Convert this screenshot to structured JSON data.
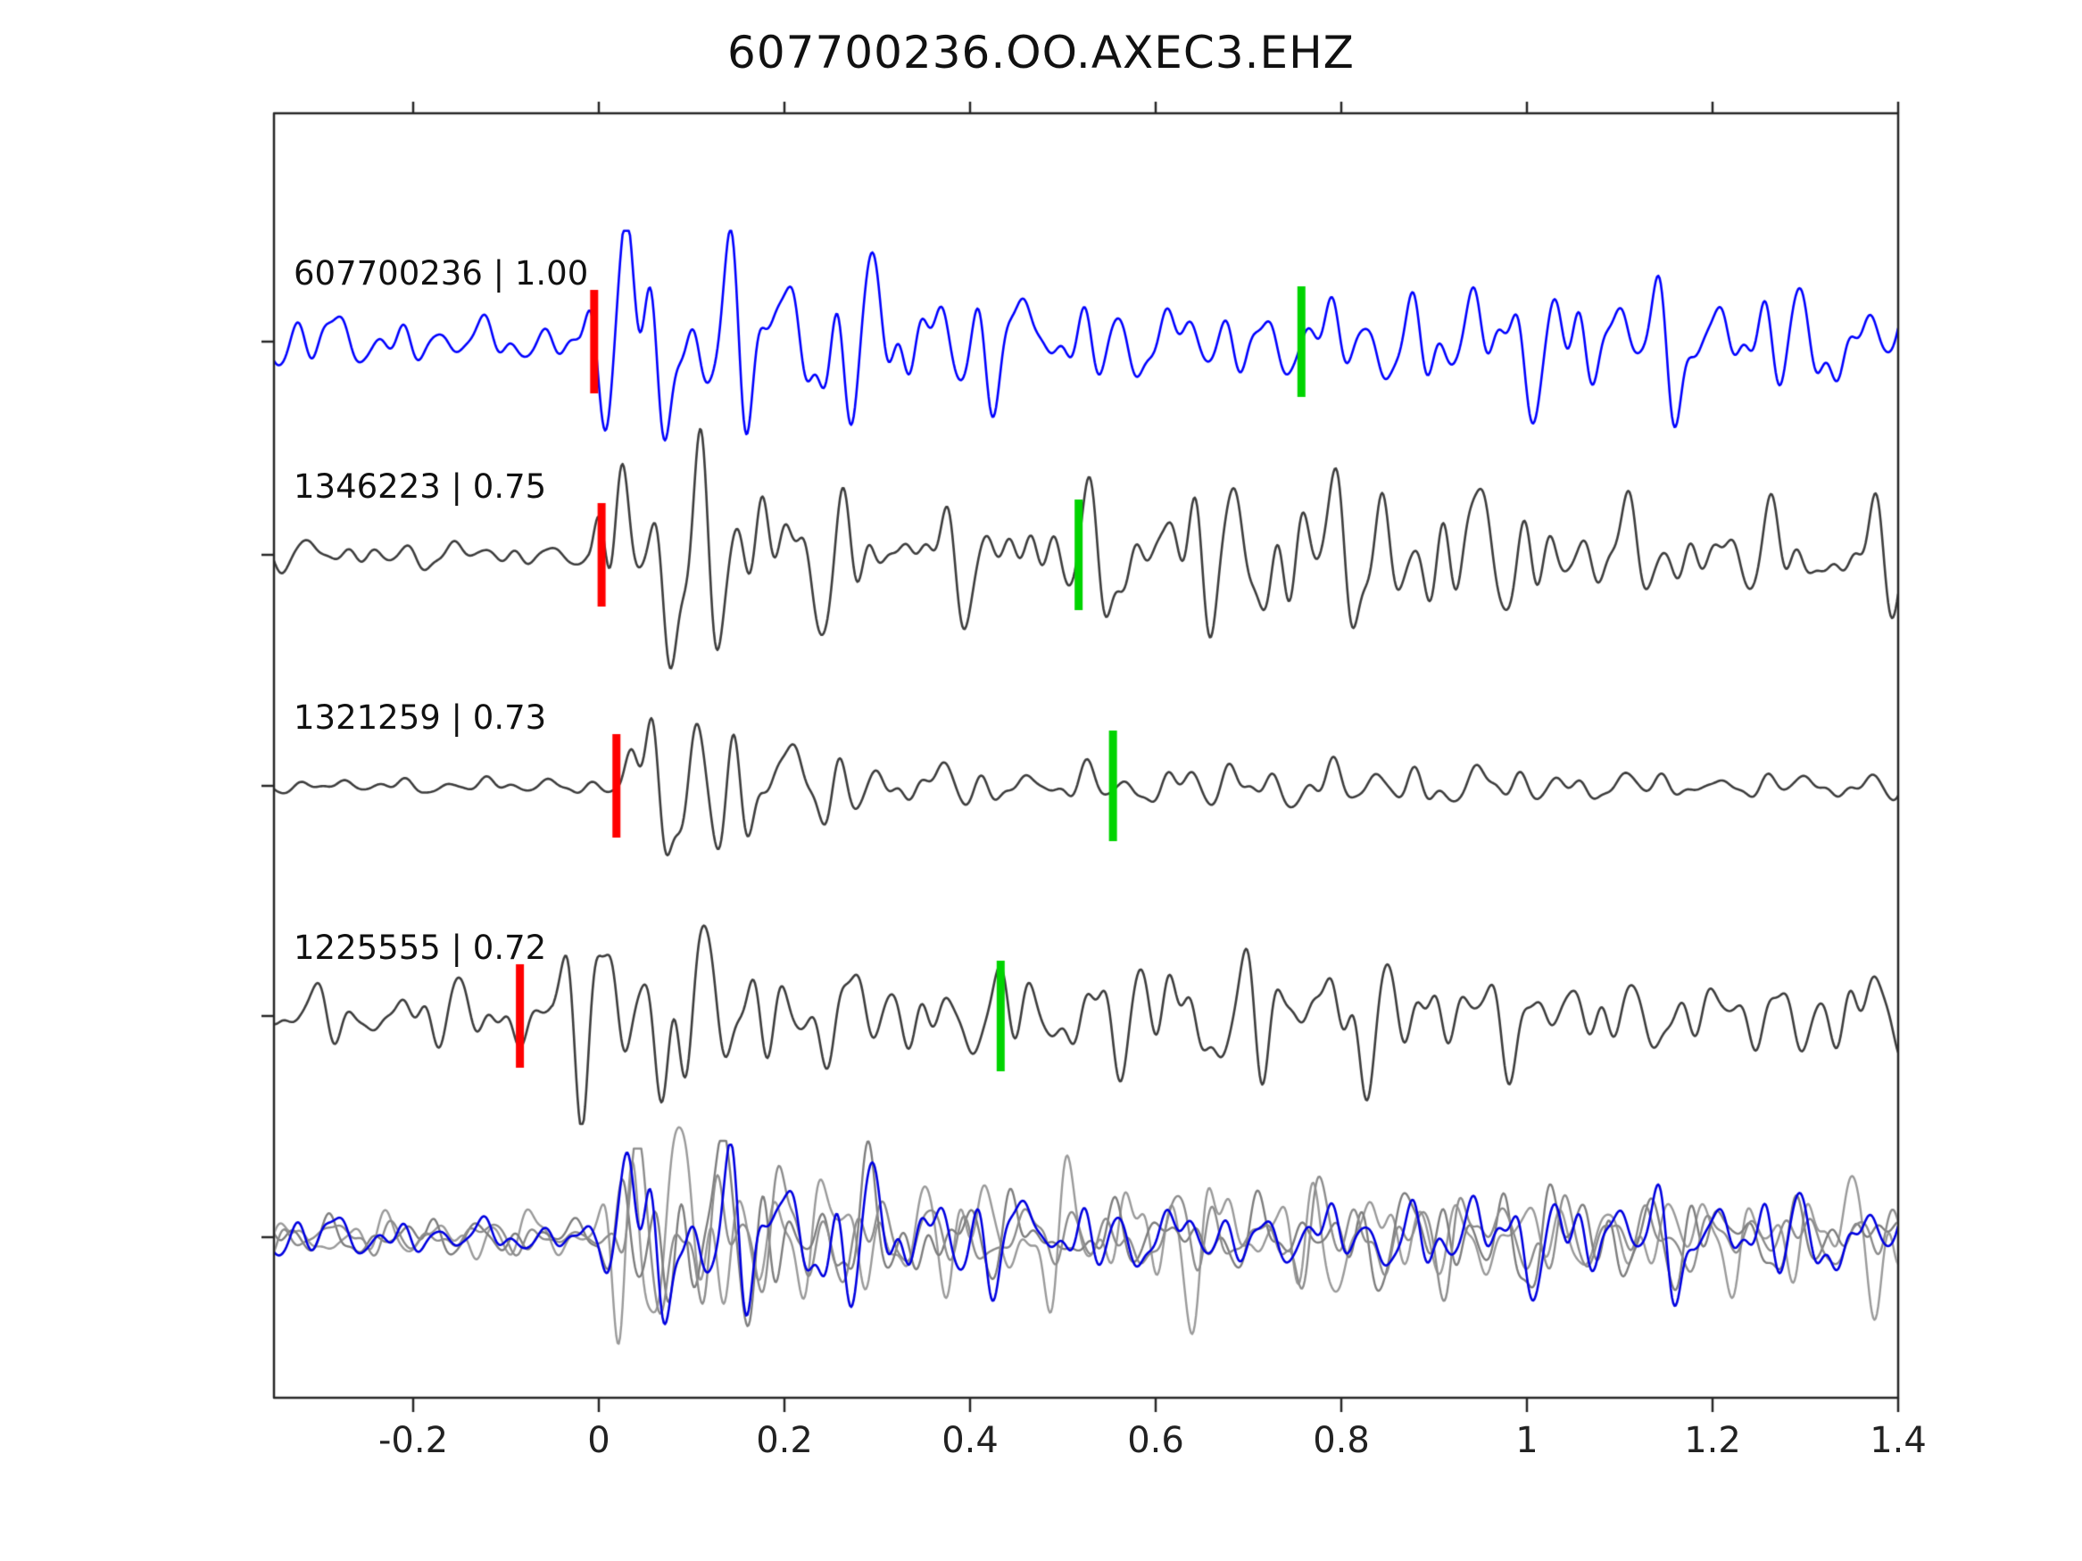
{
  "chart_data": {
    "type": "line",
    "title": "607700236.OO.AXEC3.EHZ",
    "xlabel": "",
    "ylabel": "",
    "xlim": [
      -0.35,
      1.4
    ],
    "grid": false,
    "legend_position": "none",
    "x_ticks": [
      -0.2,
      0,
      0.2,
      0.4,
      0.6,
      0.8,
      1,
      1.2,
      1.4
    ],
    "x_tick_labels": [
      "-0.2",
      "0",
      "0.2",
      "0.4",
      "0.6",
      "0.8",
      "1",
      "1.2",
      "1.4"
    ],
    "description": "Template-matching cross-correlation detections: four seismogram traces with red pick marks and green pick marks, plus a bottom row where all aligned traces are superimposed (grays) with the reference trace in blue.",
    "traces": [
      {
        "label": "607700236 | 1.00",
        "event_id": "607700236",
        "correlation": 1.0,
        "color": "#0000ff",
        "red_pick_x": -0.005,
        "green_pick_x": 0.757,
        "burst_onset_x": -0.02,
        "pre_noise_level": 0.22,
        "tail_level": 0.4
      },
      {
        "label": "1346223 | 0.75",
        "event_id": "1346223",
        "correlation": 0.75,
        "color": "#3d3d3d",
        "red_pick_x": 0.003,
        "green_pick_x": 0.517,
        "burst_onset_x": -0.01,
        "pre_noise_level": 0.09,
        "tail_level": 0.42
      },
      {
        "label": "1321259 | 0.73",
        "event_id": "1321259",
        "correlation": 0.73,
        "color": "#3d3d3d",
        "red_pick_x": 0.019,
        "green_pick_x": 0.554,
        "burst_onset_x": 0.02,
        "pre_noise_level": 0.07,
        "tail_level": 0.16
      },
      {
        "label": "1225555 | 0.72",
        "event_id": "1225555",
        "correlation": 0.72,
        "color": "#3d3d3d",
        "red_pick_x": -0.085,
        "green_pick_x": 0.433,
        "burst_onset_x": -0.05,
        "pre_noise_level": 0.27,
        "tail_level": 0.4
      }
    ],
    "overlay_row": {
      "description": "All four traces time-aligned and overplotted",
      "gray_colors": [
        "#9a9a9a",
        "#7e7e7e",
        "#8c8c8c"
      ],
      "highlight_color": "#0000e0",
      "trace_count": 4,
      "burst_onset_x": 0.0,
      "pre_noise_level": 0.16,
      "tail_level": 0.38
    },
    "pick_marks": {
      "red_color": "#ff0000",
      "green_color": "#00d400"
    },
    "axis_color": "#262626"
  }
}
